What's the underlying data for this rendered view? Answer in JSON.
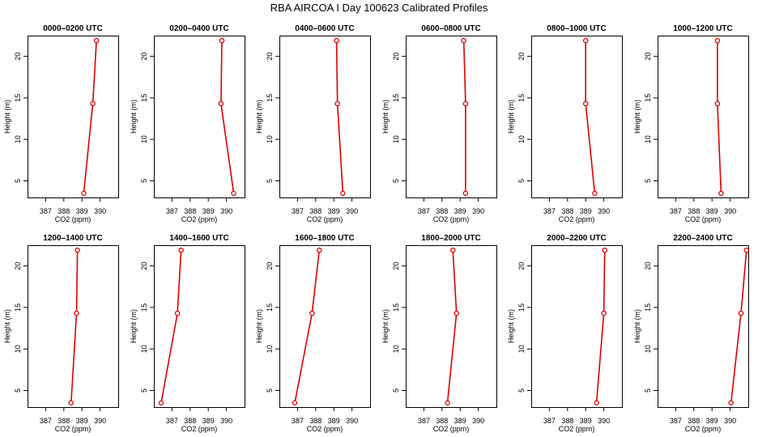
{
  "page_title": "RBA AIRCOA I  Day 100623  Calibrated Profiles",
  "series_color": "#dd0000",
  "chart_data": [
    {
      "type": "line",
      "title": "0000–0200 UTC",
      "xlabel": "CO2 (ppm)",
      "ylabel": "Height (m)",
      "x_ticks": [
        "387",
        "388",
        "389",
        "390"
      ],
      "y_ticks": [
        "5",
        "10",
        "15",
        "20"
      ],
      "xlim": [
        386,
        391
      ],
      "ylim": [
        3,
        22.5
      ],
      "points": [
        {
          "x": 389.1,
          "y": 3.5
        },
        {
          "x": 389.6,
          "y": 14.3
        },
        {
          "x": 389.8,
          "y": 21.9
        }
      ]
    },
    {
      "type": "line",
      "title": "0200–0400 UTC",
      "xlabel": "CO2 (ppm)",
      "ylabel": "Height (m)",
      "x_ticks": [
        "387",
        "388",
        "389",
        "390"
      ],
      "y_ticks": [
        "5",
        "10",
        "15",
        "20"
      ],
      "xlim": [
        386,
        391
      ],
      "ylim": [
        3,
        22.5
      ],
      "points": [
        {
          "x": 390.4,
          "y": 3.5
        },
        {
          "x": 389.7,
          "y": 14.3
        },
        {
          "x": 389.75,
          "y": 21.9
        }
      ]
    },
    {
      "type": "line",
      "title": "0400–0600 UTC",
      "xlabel": "CO2 (ppm)",
      "ylabel": "Height (m)",
      "x_ticks": [
        "387",
        "388",
        "389",
        "390"
      ],
      "y_ticks": [
        "5",
        "10",
        "15",
        "20"
      ],
      "xlim": [
        386,
        391
      ],
      "ylim": [
        3,
        22.5
      ],
      "points": [
        {
          "x": 389.5,
          "y": 3.5
        },
        {
          "x": 389.2,
          "y": 14.3
        },
        {
          "x": 389.15,
          "y": 21.9
        }
      ]
    },
    {
      "type": "line",
      "title": "0600–0800 UTC",
      "xlabel": "CO2 (ppm)",
      "ylabel": "Height (m)",
      "x_ticks": [
        "387",
        "388",
        "389",
        "390"
      ],
      "y_ticks": [
        "5",
        "10",
        "15",
        "20"
      ],
      "xlim": [
        386,
        391
      ],
      "ylim": [
        3,
        22.5
      ],
      "points": [
        {
          "x": 389.3,
          "y": 3.5
        },
        {
          "x": 389.3,
          "y": 14.3
        },
        {
          "x": 389.2,
          "y": 21.9
        }
      ]
    },
    {
      "type": "line",
      "title": "0800–1000 UTC",
      "xlabel": "CO2 (ppm)",
      "ylabel": "Height (m)",
      "x_ticks": [
        "387",
        "388",
        "389",
        "390"
      ],
      "y_ticks": [
        "5",
        "10",
        "15",
        "20"
      ],
      "xlim": [
        386,
        391
      ],
      "ylim": [
        3,
        22.5
      ],
      "points": [
        {
          "x": 389.5,
          "y": 3.5
        },
        {
          "x": 389.0,
          "y": 14.3
        },
        {
          "x": 389.0,
          "y": 21.9
        }
      ]
    },
    {
      "type": "line",
      "title": "1000–1200 UTC",
      "xlabel": "CO2 (ppm)",
      "ylabel": "Height (m)",
      "x_ticks": [
        "387",
        "388",
        "389",
        "390"
      ],
      "y_ticks": [
        "5",
        "10",
        "15",
        "20"
      ],
      "xlim": [
        386,
        391
      ],
      "ylim": [
        3,
        22.5
      ],
      "points": [
        {
          "x": 389.5,
          "y": 3.5
        },
        {
          "x": 389.3,
          "y": 14.3
        },
        {
          "x": 389.3,
          "y": 21.9
        }
      ]
    },
    {
      "type": "line",
      "title": "1200–1400 UTC",
      "xlabel": "CO2 (ppm)",
      "ylabel": "Height (m)",
      "x_ticks": [
        "387",
        "388",
        "389",
        "390"
      ],
      "y_ticks": [
        "5",
        "10",
        "15",
        "20"
      ],
      "xlim": [
        386,
        391
      ],
      "ylim": [
        3,
        22.5
      ],
      "points": [
        {
          "x": 388.4,
          "y": 3.5
        },
        {
          "x": 388.7,
          "y": 14.3
        },
        {
          "x": 388.75,
          "y": 21.9
        }
      ]
    },
    {
      "type": "line",
      "title": "1400–1600 UTC",
      "xlabel": "CO2 (ppm)",
      "ylabel": "Height (m)",
      "x_ticks": [
        "387",
        "388",
        "389",
        "390"
      ],
      "y_ticks": [
        "5",
        "10",
        "15",
        "20"
      ],
      "xlim": [
        386,
        391
      ],
      "ylim": [
        3,
        22.5
      ],
      "points": [
        {
          "x": 386.4,
          "y": 3.5
        },
        {
          "x": 387.3,
          "y": 14.3
        },
        {
          "x": 387.5,
          "y": 21.9
        }
      ]
    },
    {
      "type": "line",
      "title": "1600–1800 UTC",
      "xlabel": "CO2 (ppm)",
      "ylabel": "Height (m)",
      "x_ticks": [
        "387",
        "388",
        "389",
        "390"
      ],
      "y_ticks": [
        "5",
        "10",
        "15",
        "20"
      ],
      "xlim": [
        386,
        391
      ],
      "ylim": [
        3,
        22.5
      ],
      "points": [
        {
          "x": 386.85,
          "y": 3.5
        },
        {
          "x": 387.8,
          "y": 14.3
        },
        {
          "x": 388.2,
          "y": 21.9
        }
      ]
    },
    {
      "type": "line",
      "title": "1800–2000 UTC",
      "xlabel": "CO2 (ppm)",
      "ylabel": "Height (m)",
      "x_ticks": [
        "387",
        "388",
        "389",
        "390"
      ],
      "y_ticks": [
        "5",
        "10",
        "15",
        "20"
      ],
      "xlim": [
        386,
        391
      ],
      "ylim": [
        3,
        22.5
      ],
      "points": [
        {
          "x": 388.3,
          "y": 3.5
        },
        {
          "x": 388.8,
          "y": 14.3
        },
        {
          "x": 388.6,
          "y": 21.9
        }
      ]
    },
    {
      "type": "line",
      "title": "2000–2200 UTC",
      "xlabel": "CO2 (ppm)",
      "ylabel": "Height (m)",
      "x_ticks": [
        "387",
        "388",
        "389",
        "390"
      ],
      "y_ticks": [
        "5",
        "10",
        "15",
        "20"
      ],
      "xlim": [
        386,
        391
      ],
      "ylim": [
        3,
        22.5
      ],
      "points": [
        {
          "x": 389.6,
          "y": 3.5
        },
        {
          "x": 390.0,
          "y": 14.3
        },
        {
          "x": 390.05,
          "y": 21.9
        }
      ]
    },
    {
      "type": "line",
      "title": "2200–2400 UTC",
      "xlabel": "CO2 (ppm)",
      "ylabel": "Height (m)",
      "x_ticks": [
        "387",
        "388",
        "389",
        "390"
      ],
      "y_ticks": [
        "5",
        "10",
        "15",
        "20"
      ],
      "xlim": [
        386,
        391
      ],
      "ylim": [
        3,
        22.5
      ],
      "points": [
        {
          "x": 390.05,
          "y": 3.5
        },
        {
          "x": 390.6,
          "y": 14.3
        },
        {
          "x": 390.9,
          "y": 21.9
        }
      ]
    }
  ]
}
